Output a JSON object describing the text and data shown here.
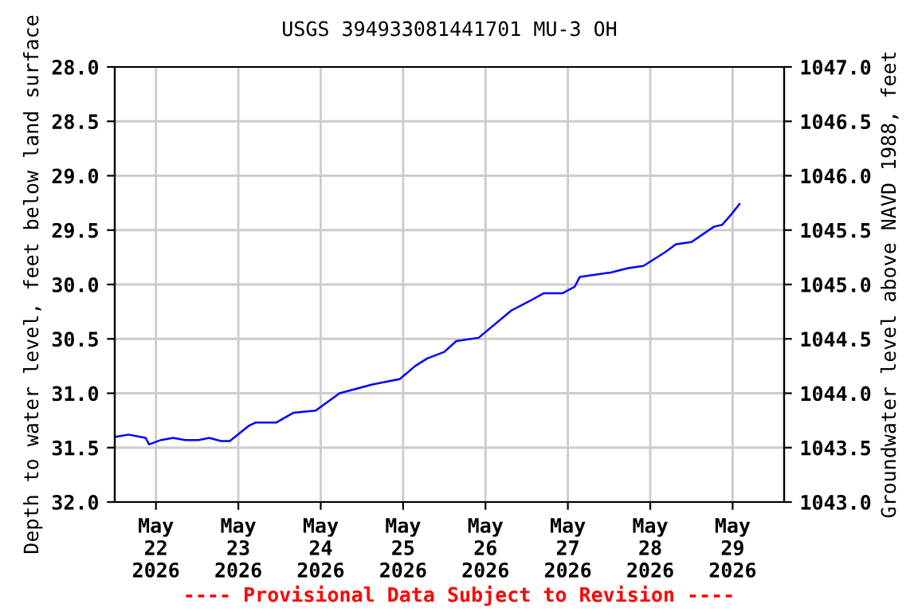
{
  "chart_data": {
    "type": "line",
    "title": "USGS 394933081441701 MU-3 OH",
    "ylabel": "Depth to water level, feet below land surface",
    "y2label": "Groundwater level above NAVD 1988, feet",
    "x": [
      "2026-05-21T12:30",
      "2026-05-21T16:00",
      "2026-05-21T21:00",
      "2026-05-21T22:00",
      "2026-05-22T01:30",
      "2026-05-22T05:00",
      "2026-05-22T08:30",
      "2026-05-22T12:30",
      "2026-05-22T15:30",
      "2026-05-22T19:00",
      "2026-05-22T21:30",
      "2026-05-23T03:00",
      "2026-05-23T05:00",
      "2026-05-23T11:00",
      "2026-05-23T16:00",
      "2026-05-23T22:30",
      "2026-05-24T05:30",
      "2026-05-24T15:00",
      "2026-05-24T23:00",
      "2026-05-25T03:30",
      "2026-05-25T07:00",
      "2026-05-25T12:00",
      "2026-05-25T15:30",
      "2026-05-25T22:00",
      "2026-05-26T07:30",
      "2026-05-26T13:00",
      "2026-05-26T17:00",
      "2026-05-26T22:30",
      "2026-05-27T02:00",
      "2026-05-27T03:30",
      "2026-05-27T12:30",
      "2026-05-27T17:30",
      "2026-05-27T22:00",
      "2026-05-28T04:30",
      "2026-05-28T07:30",
      "2026-05-28T12:00",
      "2026-05-28T18:30",
      "2026-05-28T21:00",
      "2026-05-28T23:30",
      "2026-05-29T02:00"
    ],
    "series": [
      {
        "color": "#0000ff",
        "values": [
          31.4,
          31.38,
          31.41,
          31.47,
          31.43,
          31.41,
          31.43,
          31.43,
          31.41,
          31.44,
          31.44,
          31.3,
          31.27,
          31.27,
          31.18,
          31.16,
          31.0,
          30.92,
          30.87,
          30.75,
          30.68,
          30.62,
          30.52,
          30.49,
          30.24,
          30.15,
          30.08,
          30.08,
          30.02,
          29.93,
          29.89,
          29.85,
          29.83,
          29.7,
          29.63,
          29.61,
          29.47,
          29.45,
          29.36,
          29.26
        ]
      }
    ],
    "xlim": [
      "2026-05-21T12:00",
      "2026-05-29T15:00"
    ],
    "xticks": [
      {
        "value": "2026-05-22",
        "label": "May\n22\n2026"
      },
      {
        "value": "2026-05-23",
        "label": "May\n23\n2026"
      },
      {
        "value": "2026-05-24",
        "label": "May\n24\n2026"
      },
      {
        "value": "2026-05-25",
        "label": "May\n25\n2026"
      },
      {
        "value": "2026-05-26",
        "label": "May\n26\n2026"
      },
      {
        "value": "2026-05-27",
        "label": "May\n27\n2026"
      },
      {
        "value": "2026-05-28",
        "label": "May\n28\n2026"
      },
      {
        "value": "2026-05-29",
        "label": "May\n29\n2026"
      }
    ],
    "ylim": [
      32,
      28
    ],
    "yticks": [
      {
        "value": 28,
        "label": "28.0"
      },
      {
        "value": 28.5,
        "label": "28.5"
      },
      {
        "value": 29,
        "label": "29.0"
      },
      {
        "value": 29.5,
        "label": "29.5"
      },
      {
        "value": 30,
        "label": "30.0"
      },
      {
        "value": 30.5,
        "label": "30.5"
      },
      {
        "value": 31,
        "label": "31.0"
      },
      {
        "value": 31.5,
        "label": "31.5"
      },
      {
        "value": 32,
        "label": "32.0"
      }
    ],
    "y2lim": [
      1043,
      1047
    ],
    "y2ticks": [
      {
        "value": 1043,
        "label": "1043.0"
      },
      {
        "value": 1043.5,
        "label": "1043.5"
      },
      {
        "value": 1044,
        "label": "1044.0"
      },
      {
        "value": 1044.5,
        "label": "1044.5"
      },
      {
        "value": 1045,
        "label": "1045.0"
      },
      {
        "value": 1045.5,
        "label": "1045.5"
      },
      {
        "value": 1046,
        "label": "1046.0"
      },
      {
        "value": 1046.5,
        "label": "1046.5"
      },
      {
        "value": 1047,
        "label": "1047.0"
      }
    ],
    "grid": true,
    "marker": "none",
    "line_style": "solid",
    "annotations": [
      "---- Provisional Data Subject to Revision ----"
    ]
  }
}
